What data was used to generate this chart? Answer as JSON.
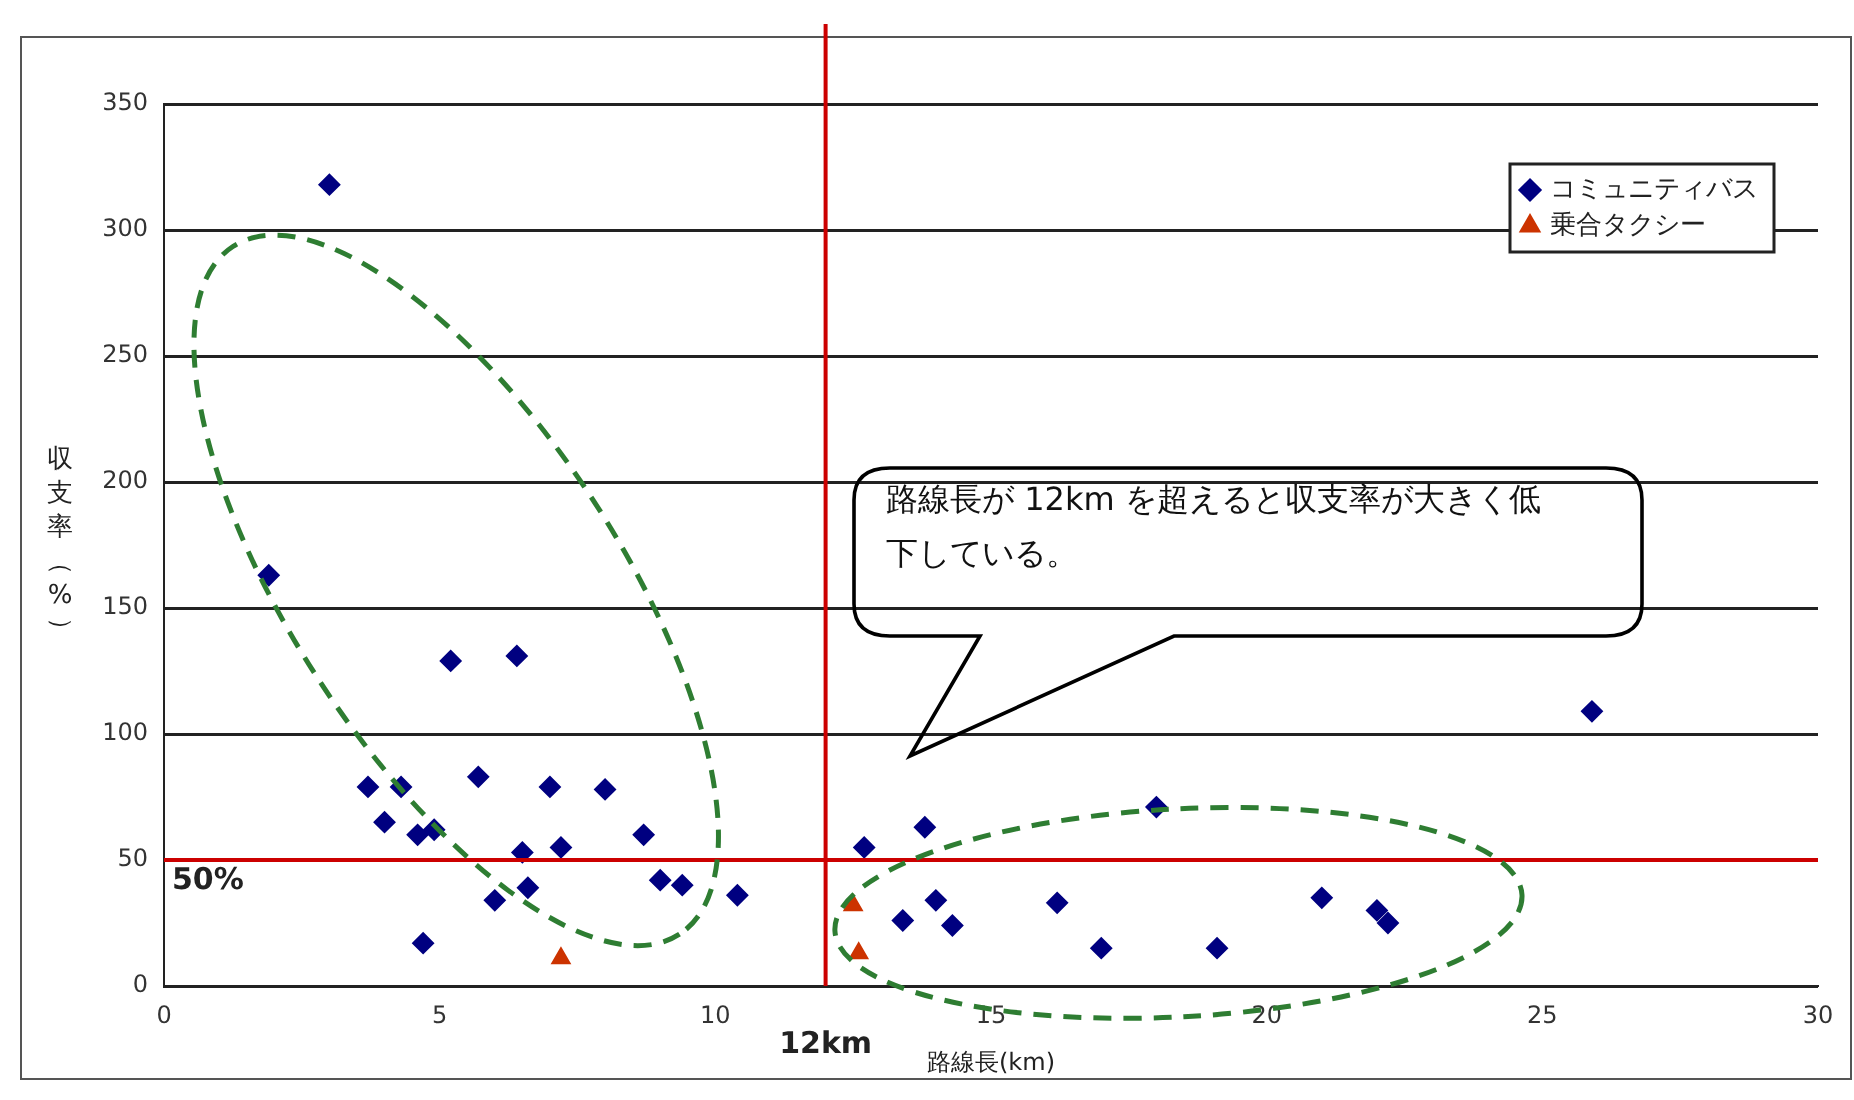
{
  "chart_data": {
    "type": "scatter",
    "xlabel": "路線長(km)",
    "ylabel": "収支率（%）",
    "xlim": [
      0,
      30
    ],
    "xticks": [
      0,
      5,
      10,
      15,
      20,
      25,
      30
    ],
    "ylim": [
      0,
      350
    ],
    "yticks": [
      0,
      50,
      100,
      150,
      200,
      250,
      300,
      350
    ],
    "grid": "y",
    "legend": "top right",
    "series": [
      {
        "name": "コミュニティバス",
        "color": "#000080",
        "marker": "diamond",
        "x": [
          3.0,
          1.9,
          5.2,
          6.4,
          3.7,
          4.3,
          5.7,
          7.0,
          8.0,
          4.0,
          4.6,
          4.9,
          8.7,
          6.5,
          7.2,
          9.0,
          9.4,
          6.6,
          6.0,
          10.4,
          4.7,
          25.9,
          12.7,
          13.8,
          18.0,
          14.0,
          13.4,
          14.3,
          16.2,
          17.0,
          19.1,
          21.0,
          22.0,
          22.2
        ],
        "values": [
          318,
          163,
          129,
          131,
          79,
          79,
          83,
          79,
          78,
          65,
          60,
          62,
          60,
          53,
          55,
          42,
          40,
          39,
          34,
          36,
          17,
          109,
          55,
          63,
          71,
          34,
          26,
          24,
          33,
          15,
          15,
          35,
          30,
          25
        ]
      },
      {
        "name": "乗合タクシー",
        "color": "#cc3300",
        "marker": "triangle",
        "x": [
          7.2,
          12.5,
          12.6
        ],
        "values": [
          11,
          32,
          13
        ]
      }
    ],
    "ref_lines": [
      {
        "axis": "x",
        "value": 12,
        "label": "12km",
        "color": "#cc0000"
      },
      {
        "axis": "y",
        "value": 50,
        "label": "50%",
        "color": "#cc0000"
      }
    ],
    "annotations": [
      "路線長が 12km を超えると収支率が大きく低下している。"
    ]
  }
}
